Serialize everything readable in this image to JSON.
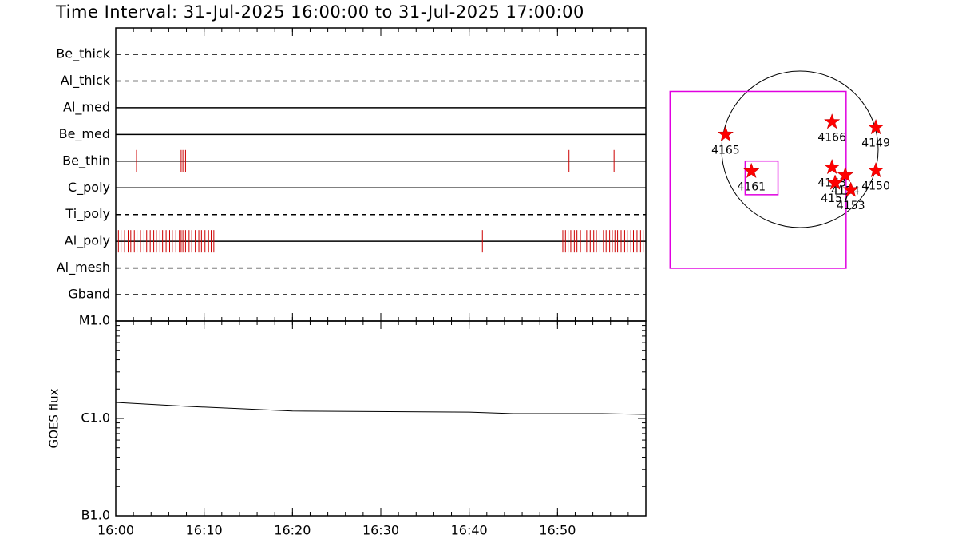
{
  "chart_data": [
    {
      "type": "event",
      "title": "Time Interval: 31-Jul-2025 16:00:00 to 31-Jul-2025 17:00:00",
      "xlim": [
        0,
        60
      ],
      "rows": [
        {
          "name": "Be_thick",
          "style": "dashed",
          "events": []
        },
        {
          "name": "Al_thick",
          "style": "dashed",
          "events": []
        },
        {
          "name": "Al_med",
          "style": "solid",
          "events": []
        },
        {
          "name": "Be_med",
          "style": "solid",
          "events": []
        },
        {
          "name": "Be_thin",
          "style": "solid",
          "events": [
            2.35,
            7.4,
            7.6,
            7.9,
            51.3,
            56.4
          ]
        },
        {
          "name": "C_poly",
          "style": "solid",
          "events": []
        },
        {
          "name": "Ti_poly",
          "style": "dashed",
          "events": []
        },
        {
          "name": "Al_poly",
          "style": "solid",
          "events": [
            0.3,
            0.6,
            1.0,
            1.4,
            1.7,
            2.1,
            2.4,
            2.8,
            3.2,
            3.5,
            3.9,
            4.3,
            4.6,
            5.0,
            5.3,
            5.7,
            6.1,
            6.4,
            6.8,
            7.2,
            7.4,
            7.6,
            7.9,
            8.3,
            8.6,
            9.0,
            9.4,
            9.7,
            10.1,
            10.5,
            10.8,
            11.1,
            41.5,
            50.6,
            50.9,
            51.2,
            51.5,
            51.9,
            52.2,
            52.6,
            53.0,
            53.3,
            53.7,
            54.1,
            54.4,
            54.8,
            55.2,
            55.5,
            55.9,
            56.2,
            56.5,
            56.8,
            57.2,
            57.6,
            57.9,
            58.3,
            58.6,
            59.0,
            59.4,
            59.7
          ]
        },
        {
          "name": "Al_mesh",
          "style": "dashed",
          "events": []
        },
        {
          "name": "Gband",
          "style": "dashed",
          "events": []
        }
      ],
      "color": "#cc0000"
    },
    {
      "type": "line",
      "y_label": "GOES flux",
      "log_y": true,
      "x": [
        0,
        8,
        20,
        40,
        45,
        55,
        60
      ],
      "values": [
        1.46e-06,
        1.33e-06,
        1.19e-06,
        1.16e-06,
        1.12e-06,
        1.12e-06,
        1.1e-06
      ],
      "color": "#000000",
      "xlim": [
        0,
        60
      ],
      "xticks": [
        {
          "value": 0,
          "label": "16:00"
        },
        {
          "value": 10,
          "label": "16:10"
        },
        {
          "value": 20,
          "label": "16:20"
        },
        {
          "value": 30,
          "label": "16:30"
        },
        {
          "value": 40,
          "label": "16:40"
        },
        {
          "value": 50,
          "label": "16:50"
        }
      ],
      "ylim": [
        1e-07,
        1e-05
      ],
      "yticks": [
        {
          "value": 1e-07,
          "label": "B1.0"
        },
        {
          "value": 1e-06,
          "label": "C1.0"
        },
        {
          "value": 1e-05,
          "label": "M1.0"
        }
      ]
    },
    {
      "type": "scatter",
      "points": [
        {
          "name": "4165",
          "x": -0.95,
          "y": 0.19
        },
        {
          "name": "4166",
          "x": 0.41,
          "y": 0.35
        },
        {
          "name": "4149",
          "x": 0.97,
          "y": 0.28
        },
        {
          "name": "4161",
          "x": -0.62,
          "y": -0.28
        },
        {
          "name": "4163",
          "x": 0.41,
          "y": -0.23
        },
        {
          "name": "4154",
          "x": 0.58,
          "y": -0.33
        },
        {
          "name": "4157",
          "x": 0.45,
          "y": -0.43
        },
        {
          "name": "4153",
          "x": 0.65,
          "y": -0.52
        },
        {
          "name": "4150",
          "x": 0.97,
          "y": -0.27
        }
      ],
      "boxes": [
        {
          "x": [
            -1.66,
            0.59
          ],
          "y": [
            -1.52,
            0.74
          ]
        },
        {
          "x": [
            -0.7,
            -0.28
          ],
          "y": [
            -0.58,
            -0.15
          ]
        }
      ],
      "color": "#ff0000",
      "box_color": "#e000e0"
    }
  ]
}
